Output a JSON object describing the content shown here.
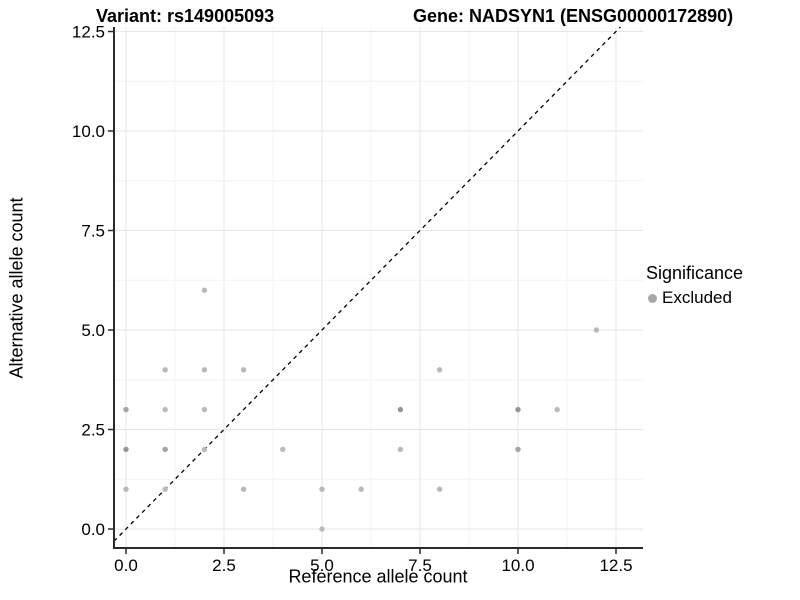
{
  "title": {
    "variant": "Variant: rs149005093",
    "gene": "Gene: NADSYN1 (ENSG00000172890)"
  },
  "legend": {
    "title": "Significance",
    "items": [
      {
        "label": "Excluded",
        "swatch_color": "#a8a8a8"
      }
    ]
  },
  "chart_data": {
    "type": "scatter",
    "title": "Variant: rs149005093 | Gene: NADSYN1 (ENSG00000172890)",
    "xlabel": "Reference allele count",
    "ylabel": "Alternative allele count",
    "xlim": [
      0,
      12.5
    ],
    "ylim": [
      0,
      12.5
    ],
    "x_ticks": {
      "values": [
        0,
        2.5,
        5,
        7.5,
        10,
        12.5
      ],
      "labels": [
        "0.0",
        "2.5",
        "5.0",
        "7.5",
        "10.0",
        "12.5"
      ]
    },
    "y_ticks": {
      "values": [
        0,
        2.5,
        5,
        7.5,
        10,
        12.5
      ],
      "labels": [
        "0.0",
        "2.5",
        "5.0",
        "7.5",
        "10.0",
        "12.5"
      ]
    },
    "minor_grid_values": [
      1.25,
      3.75,
      6.25,
      8.75,
      11.25
    ],
    "grid": "on",
    "legend_position": "right",
    "reference_line": {
      "kind": "diagonal y = x",
      "style": "dashed",
      "color": "#000000"
    },
    "series": [
      {
        "name": "Excluded",
        "marker": "circle",
        "points": [
          {
            "x": 5,
            "y": 0,
            "shade": "light"
          },
          {
            "x": 0,
            "y": 1,
            "shade": "light"
          },
          {
            "x": 1,
            "y": 1,
            "shade": "light"
          },
          {
            "x": 3,
            "y": 1,
            "shade": "light"
          },
          {
            "x": 5,
            "y": 1,
            "shade": "light"
          },
          {
            "x": 6,
            "y": 1,
            "shade": "light"
          },
          {
            "x": 8,
            "y": 1,
            "shade": "light"
          },
          {
            "x": 0,
            "y": 2,
            "shade": "dark"
          },
          {
            "x": 1,
            "y": 2,
            "shade": "mid"
          },
          {
            "x": 2,
            "y": 2,
            "shade": "light"
          },
          {
            "x": 4,
            "y": 2,
            "shade": "light"
          },
          {
            "x": 7,
            "y": 2,
            "shade": "light"
          },
          {
            "x": 10,
            "y": 2,
            "shade": "mid"
          },
          {
            "x": 0,
            "y": 3,
            "shade": "mid"
          },
          {
            "x": 1,
            "y": 3,
            "shade": "light"
          },
          {
            "x": 2,
            "y": 3,
            "shade": "light"
          },
          {
            "x": 7,
            "y": 3,
            "shade": "dark"
          },
          {
            "x": 10,
            "y": 3,
            "shade": "dark"
          },
          {
            "x": 11,
            "y": 3,
            "shade": "light"
          },
          {
            "x": 1,
            "y": 4,
            "shade": "light"
          },
          {
            "x": 2,
            "y": 4,
            "shade": "light"
          },
          {
            "x": 3,
            "y": 4,
            "shade": "light"
          },
          {
            "x": 8,
            "y": 4,
            "shade": "light"
          },
          {
            "x": 12,
            "y": 5,
            "shade": "light"
          },
          {
            "x": 2,
            "y": 6,
            "shade": "light"
          }
        ]
      }
    ],
    "colors": {
      "point_light": "#b9b9b9",
      "point_mid": "#a3a3a3",
      "point_dark": "#949494",
      "grid_major": "#e6e6e6",
      "grid_minor": "#f3f3f3",
      "axis_line": "#2b2b2b",
      "background": "#ffffff"
    }
  }
}
